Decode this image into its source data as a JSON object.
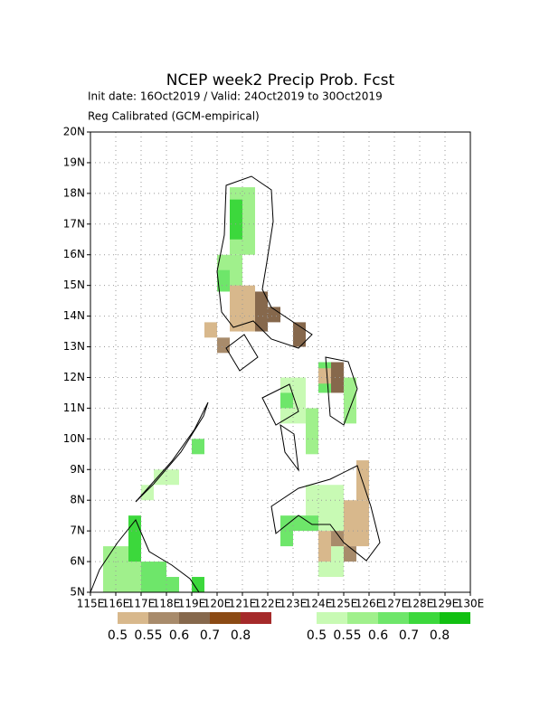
{
  "chart_data": {
    "type": "grid-map",
    "title": "NCEP week2 Precip Prob. Fcst",
    "subtitle": "Init date: 16Oct2019 / Valid: 24Oct2019 to 30Oct2019",
    "note": "Reg Calibrated (GCM-empirical)",
    "xlim": [
      115,
      130
    ],
    "ylim": [
      5,
      20
    ],
    "xticks": [
      {
        "value": 115,
        "label": "115E"
      },
      {
        "value": 116,
        "label": "116E"
      },
      {
        "value": 117,
        "label": "117E"
      },
      {
        "value": 118,
        "label": "118E"
      },
      {
        "value": 119,
        "label": "119E"
      },
      {
        "value": 120,
        "label": "120E"
      },
      {
        "value": 121,
        "label": "121E"
      },
      {
        "value": 122,
        "label": "122E"
      },
      {
        "value": 123,
        "label": "123E"
      },
      {
        "value": 124,
        "label": "124E"
      },
      {
        "value": 125,
        "label": "125E"
      },
      {
        "value": 126,
        "label": "126E"
      },
      {
        "value": 127,
        "label": "127E"
      },
      {
        "value": 128,
        "label": "128E"
      },
      {
        "value": 129,
        "label": "129E"
      },
      {
        "value": 130,
        "label": "130E"
      }
    ],
    "yticks": [
      {
        "value": 5,
        "label": "5N"
      },
      {
        "value": 6,
        "label": "6N"
      },
      {
        "value": 7,
        "label": "7N"
      },
      {
        "value": 8,
        "label": "8N"
      },
      {
        "value": 9,
        "label": "9N"
      },
      {
        "value": 10,
        "label": "10N"
      },
      {
        "value": 11,
        "label": "11N"
      },
      {
        "value": 12,
        "label": "12N"
      },
      {
        "value": 13,
        "label": "13N"
      },
      {
        "value": 14,
        "label": "14N"
      },
      {
        "value": 15,
        "label": "15N"
      },
      {
        "value": 16,
        "label": "16N"
      },
      {
        "value": 17,
        "label": "17N"
      },
      {
        "value": 18,
        "label": "18N"
      },
      {
        "value": 19,
        "label": "19N"
      },
      {
        "value": 20,
        "label": "20N"
      }
    ],
    "grid": true,
    "dry_colors": [
      "#d8b88c",
      "#a88b6b",
      "#86684c",
      "#8b4a14",
      "#a52a2a"
    ],
    "dry_labels": [
      0.5,
      0.55,
      0.6,
      0.7,
      0.8
    ],
    "wet_colors": [
      "#c8fab4",
      "#a0f08c",
      "#6ee66a",
      "#3cd83c",
      "#12c012"
    ],
    "wet_labels": [
      0.5,
      0.55,
      0.6,
      0.7,
      0.8
    ],
    "wet_regions": [
      {
        "lon": [
          120.5,
          121.5
        ],
        "lat": [
          16.0,
          18.2
        ],
        "level": 1
      },
      {
        "lon": [
          120.5,
          121.0
        ],
        "lat": [
          16.5,
          17.8
        ],
        "level": 3
      },
      {
        "lon": [
          120.0,
          121.0
        ],
        "lat": [
          14.8,
          16.0
        ],
        "level": 1
      },
      {
        "lon": [
          120.0,
          120.5
        ],
        "lat": [
          14.8,
          15.5
        ],
        "level": 2
      },
      {
        "lon": [
          122.5,
          123.5
        ],
        "lat": [
          10.5,
          12.0
        ],
        "level": 0
      },
      {
        "lon": [
          122.5,
          123.0
        ],
        "lat": [
          11.0,
          11.5
        ],
        "level": 2
      },
      {
        "lon": [
          123.5,
          124.0
        ],
        "lat": [
          9.5,
          11.0
        ],
        "level": 1
      },
      {
        "lon": [
          124.0,
          124.5
        ],
        "lat": [
          11.5,
          12.5
        ],
        "level": 2
      },
      {
        "lon": [
          125.0,
          125.5
        ],
        "lat": [
          10.5,
          12.0
        ],
        "level": 1
      },
      {
        "lon": [
          123.5,
          125.0
        ],
        "lat": [
          7.0,
          8.5
        ],
        "level": 0
      },
      {
        "lon": [
          123.0,
          124.0
        ],
        "lat": [
          7.0,
          7.5
        ],
        "level": 2
      },
      {
        "lon": [
          122.5,
          123.0
        ],
        "lat": [
          6.5,
          7.5
        ],
        "level": 2
      },
      {
        "lon": [
          124.0,
          125.0
        ],
        "lat": [
          5.5,
          6.5
        ],
        "level": 0
      },
      {
        "lon": [
          119.0,
          119.5
        ],
        "lat": [
          9.5,
          10.0
        ],
        "level": 2
      },
      {
        "lon": [
          117.5,
          118.5
        ],
        "lat": [
          8.5,
          9.0
        ],
        "level": 0
      },
      {
        "lon": [
          117.0,
          117.5
        ],
        "lat": [
          8.0,
          8.5
        ],
        "level": 0
      },
      {
        "lon": [
          115.5,
          117.0
        ],
        "lat": [
          5.0,
          6.5
        ],
        "level": 1
      },
      {
        "lon": [
          116.5,
          117.0
        ],
        "lat": [
          6.0,
          7.5
        ],
        "level": 3
      },
      {
        "lon": [
          117.0,
          118.0
        ],
        "lat": [
          5.0,
          6.0
        ],
        "level": 2
      },
      {
        "lon": [
          118.0,
          118.5
        ],
        "lat": [
          5.0,
          5.5
        ],
        "level": 2
      },
      {
        "lon": [
          119.0,
          119.5
        ],
        "lat": [
          5.0,
          5.5
        ],
        "level": 3
      }
    ],
    "dry_regions": [
      {
        "lon": [
          120.5,
          121.5
        ],
        "lat": [
          13.5,
          15.0
        ],
        "level": 0
      },
      {
        "lon": [
          121.5,
          122.0
        ],
        "lat": [
          13.5,
          14.8
        ],
        "level": 2
      },
      {
        "lon": [
          120.0,
          120.5
        ],
        "lat": [
          12.8,
          13.3
        ],
        "level": 1
      },
      {
        "lon": [
          119.5,
          120.0
        ],
        "lat": [
          13.3,
          13.8
        ],
        "level": 0
      },
      {
        "lon": [
          122.0,
          122.5
        ],
        "lat": [
          13.8,
          14.3
        ],
        "level": 2
      },
      {
        "lon": [
          123.0,
          123.5
        ],
        "lat": [
          13.0,
          13.8
        ],
        "level": 2
      },
      {
        "lon": [
          124.5,
          125.0
        ],
        "lat": [
          11.5,
          12.5
        ],
        "level": 2
      },
      {
        "lon": [
          124.0,
          124.5
        ],
        "lat": [
          11.8,
          12.3
        ],
        "level": 0
      },
      {
        "lon": [
          125.0,
          126.0
        ],
        "lat": [
          6.5,
          8.0
        ],
        "level": 0
      },
      {
        "lon": [
          125.5,
          126.0
        ],
        "lat": [
          8.0,
          9.3
        ],
        "level": 0
      },
      {
        "lon": [
          124.5,
          125.0
        ],
        "lat": [
          6.5,
          7.0
        ],
        "level": 1
      },
      {
        "lon": [
          125.0,
          125.5
        ],
        "lat": [
          6.0,
          6.5
        ],
        "level": 1
      },
      {
        "lon": [
          124.0,
          124.5
        ],
        "lat": [
          6.0,
          7.0
        ],
        "level": 0
      }
    ]
  }
}
